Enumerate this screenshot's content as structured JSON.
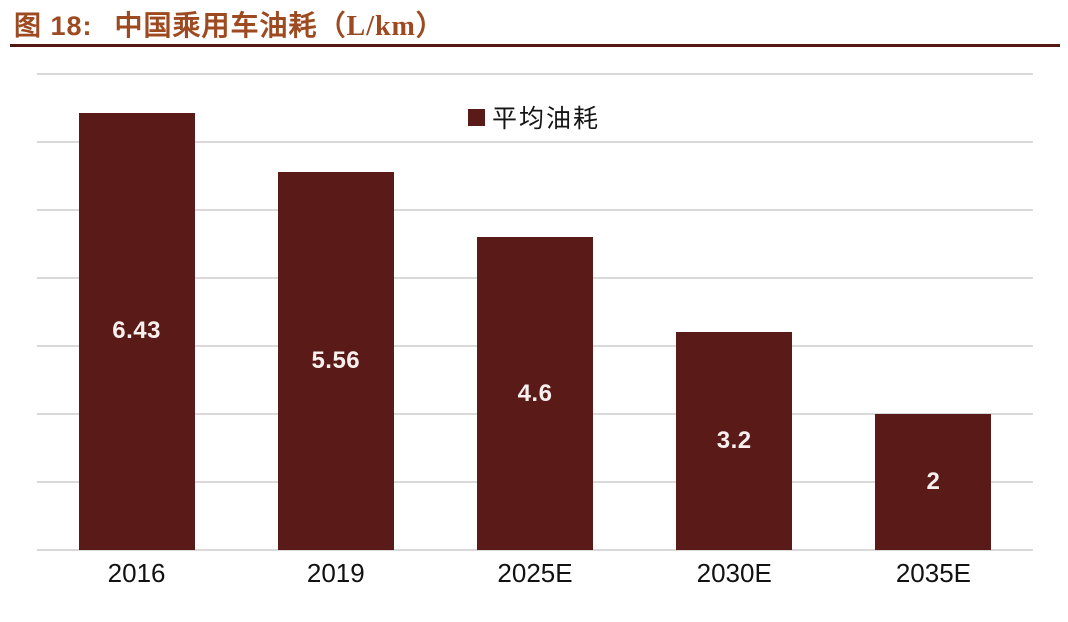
{
  "title": {
    "prefix": "图 18:",
    "text": "中国乘用车油耗（L/km）"
  },
  "legend": {
    "label": "平均油耗",
    "swatch_color": "#5A1A18"
  },
  "chart_data": {
    "type": "bar",
    "title": "中国乘用车油耗（L/km）",
    "categories": [
      "2016",
      "2019",
      "2025E",
      "2030E",
      "2035E"
    ],
    "series": [
      {
        "name": "平均油耗",
        "values": [
          6.43,
          5.56,
          4.6,
          3.2,
          2
        ]
      }
    ],
    "value_labels": [
      "6.43",
      "5.56",
      "4.6",
      "3.2",
      "2"
    ],
    "xlabel": "",
    "ylabel": "",
    "ylim": [
      0,
      7
    ],
    "gridline_step": 1,
    "grid": "horizontal-light-gray",
    "y_tick_labels_visible": false,
    "legend_position": "top-center",
    "bar_color": "#5A1A18",
    "bar_value_label_color": "#F8F0EE"
  },
  "colors": {
    "title_text": "#9E4A20",
    "title_rule": "#541712",
    "gridline": "#D9D9D9",
    "x_axis_label": "#111111",
    "background": "#FFFFFF"
  }
}
